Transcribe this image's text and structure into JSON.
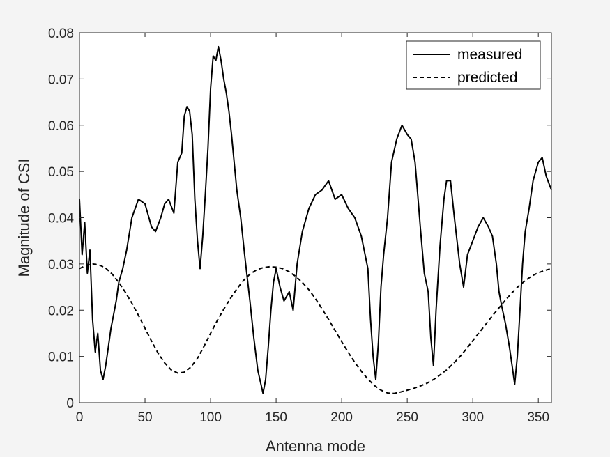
{
  "chart_data": {
    "type": "line",
    "title": "",
    "xlabel": "Antenna mode",
    "ylabel": "Magnitude of CSI",
    "xlim": [
      0,
      360
    ],
    "ylim": [
      0,
      0.08
    ],
    "xticks": [
      0,
      50,
      100,
      150,
      200,
      250,
      300,
      350
    ],
    "yticks": [
      0,
      0.01,
      0.02,
      0.03,
      0.04,
      0.05,
      0.06,
      0.07,
      0.08
    ],
    "xtick_labels": [
      "0",
      "50",
      "100",
      "150",
      "200",
      "250",
      "300",
      "350"
    ],
    "ytick_labels": [
      "0",
      "0.01",
      "0.02",
      "0.03",
      "0.04",
      "0.05",
      "0.06",
      "0.07",
      "0.08"
    ],
    "grid": false,
    "legend_position": "top-right",
    "series": [
      {
        "name": "measured",
        "style": "solid",
        "color": "#000000",
        "x": [
          0,
          2,
          4,
          6,
          8,
          10,
          12,
          14,
          16,
          18,
          20,
          22,
          24,
          26,
          28,
          30,
          33,
          36,
          40,
          45,
          50,
          55,
          58,
          62,
          65,
          68,
          72,
          75,
          78,
          80,
          82,
          84,
          86,
          88,
          90,
          92,
          94,
          96,
          98,
          100,
          102,
          104,
          106,
          108,
          110,
          112,
          114,
          116,
          118,
          120,
          123,
          126,
          130,
          133,
          136,
          140,
          142,
          144,
          146,
          148,
          150,
          153,
          156,
          160,
          163,
          166,
          170,
          175,
          180,
          185,
          190,
          195,
          200,
          205,
          210,
          215,
          220,
          222,
          224,
          226,
          228,
          230,
          232,
          235,
          238,
          242,
          246,
          250,
          253,
          256,
          258,
          260,
          263,
          266,
          268,
          270,
          272,
          275,
          278,
          280,
          283,
          286,
          290,
          293,
          296,
          300,
          304,
          308,
          312,
          315,
          318,
          320,
          322,
          325,
          328,
          330,
          332,
          334,
          336,
          338,
          340,
          343,
          346,
          350,
          353,
          356,
          360
        ],
        "y": [
          0.044,
          0.032,
          0.039,
          0.028,
          0.033,
          0.018,
          0.011,
          0.015,
          0.007,
          0.005,
          0.008,
          0.012,
          0.016,
          0.019,
          0.022,
          0.026,
          0.029,
          0.033,
          0.04,
          0.044,
          0.043,
          0.038,
          0.037,
          0.04,
          0.043,
          0.044,
          0.041,
          0.052,
          0.054,
          0.062,
          0.064,
          0.063,
          0.058,
          0.044,
          0.035,
          0.029,
          0.036,
          0.045,
          0.055,
          0.068,
          0.075,
          0.074,
          0.077,
          0.074,
          0.07,
          0.067,
          0.063,
          0.058,
          0.052,
          0.046,
          0.04,
          0.032,
          0.022,
          0.014,
          0.007,
          0.002,
          0.005,
          0.012,
          0.02,
          0.026,
          0.029,
          0.025,
          0.022,
          0.024,
          0.02,
          0.03,
          0.037,
          0.042,
          0.045,
          0.046,
          0.048,
          0.044,
          0.045,
          0.042,
          0.04,
          0.036,
          0.029,
          0.018,
          0.01,
          0.005,
          0.013,
          0.025,
          0.032,
          0.04,
          0.052,
          0.057,
          0.06,
          0.058,
          0.057,
          0.052,
          0.045,
          0.038,
          0.028,
          0.024,
          0.014,
          0.008,
          0.02,
          0.034,
          0.044,
          0.048,
          0.048,
          0.04,
          0.03,
          0.025,
          0.032,
          0.035,
          0.038,
          0.04,
          0.038,
          0.036,
          0.03,
          0.024,
          0.021,
          0.017,
          0.012,
          0.008,
          0.004,
          0.01,
          0.02,
          0.03,
          0.037,
          0.042,
          0.048,
          0.052,
          0.053,
          0.049,
          0.046
        ]
      },
      {
        "name": "predicted",
        "style": "dashed",
        "color": "#000000",
        "x": [
          0,
          5,
          10,
          15,
          20,
          25,
          30,
          35,
          40,
          45,
          50,
          55,
          60,
          65,
          70,
          75,
          80,
          85,
          90,
          95,
          100,
          105,
          110,
          115,
          120,
          125,
          130,
          135,
          140,
          145,
          150,
          155,
          160,
          165,
          170,
          175,
          180,
          185,
          190,
          195,
          200,
          205,
          210,
          215,
          220,
          225,
          230,
          235,
          240,
          245,
          250,
          255,
          260,
          265,
          270,
          275,
          280,
          285,
          290,
          295,
          300,
          305,
          310,
          315,
          320,
          325,
          330,
          335,
          340,
          345,
          350,
          355,
          360
        ],
        "y": [
          0.029,
          0.0297,
          0.03,
          0.0298,
          0.0291,
          0.0278,
          0.026,
          0.0239,
          0.0215,
          0.0189,
          0.0161,
          0.0133,
          0.0107,
          0.0086,
          0.0071,
          0.0064,
          0.0066,
          0.0077,
          0.0096,
          0.0122,
          0.015,
          0.0177,
          0.0202,
          0.0225,
          0.0246,
          0.0264,
          0.0278,
          0.0287,
          0.0292,
          0.0294,
          0.0293,
          0.029,
          0.0283,
          0.0273,
          0.026,
          0.0244,
          0.0225,
          0.0203,
          0.018,
          0.0156,
          0.0132,
          0.0109,
          0.0087,
          0.0068,
          0.0051,
          0.0037,
          0.0027,
          0.0021,
          0.002,
          0.0023,
          0.0027,
          0.0031,
          0.0036,
          0.0042,
          0.005,
          0.006,
          0.0071,
          0.0084,
          0.0099,
          0.0116,
          0.0134,
          0.0152,
          0.017,
          0.0188,
          0.0205,
          0.0222,
          0.0238,
          0.0252,
          0.0264,
          0.0274,
          0.0281,
          0.0286,
          0.029
        ]
      }
    ]
  }
}
